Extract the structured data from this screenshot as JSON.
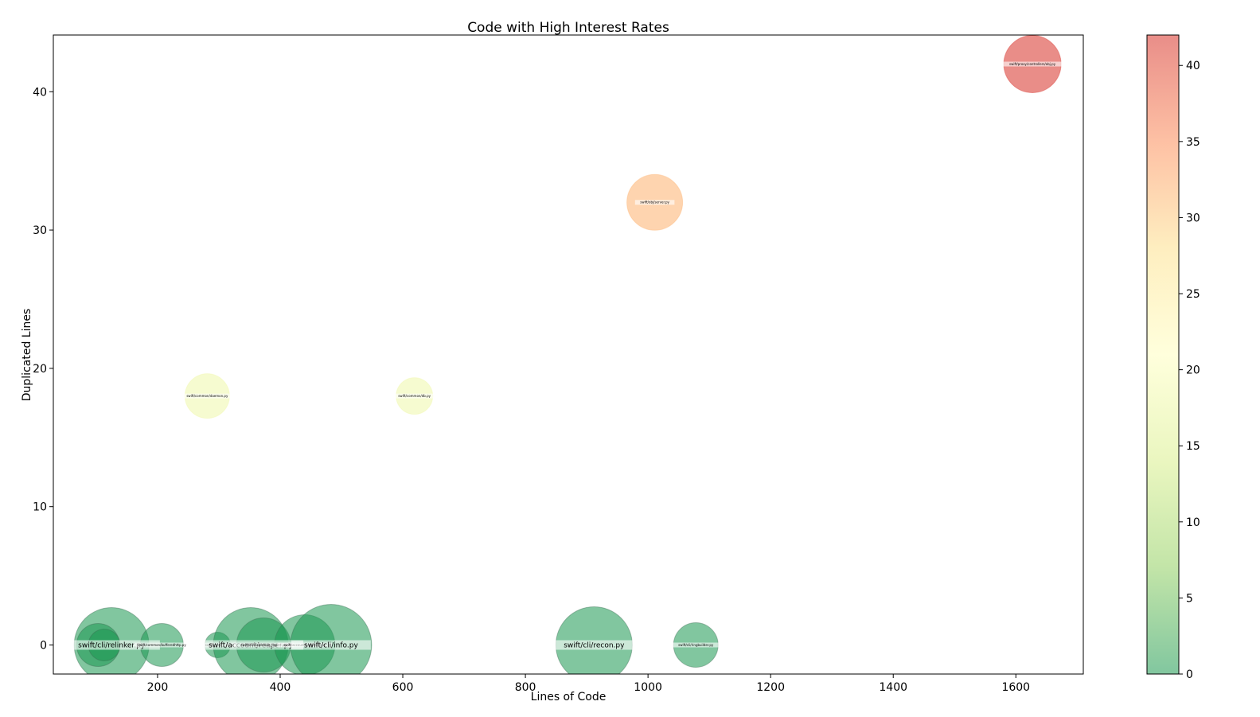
{
  "chart_data": {
    "type": "scatter",
    "title": "Code with High Interest Rates",
    "xlabel": "Lines of Code",
    "ylabel": "Duplicated Lines",
    "xlim": [
      30,
      1710
    ],
    "ylim": [
      -2.1,
      44.1
    ],
    "xticks": [
      200,
      400,
      600,
      800,
      1000,
      1200,
      1400,
      1600
    ],
    "yticks": [
      0,
      10,
      20,
      30,
      40
    ],
    "colorbar": {
      "range": [
        0,
        42
      ],
      "ticks": [
        0,
        5,
        10,
        15,
        20,
        25,
        30,
        35,
        40
      ],
      "colormap": [
        "#1a9850",
        "#91cf60",
        "#d9ef8b",
        "#ffffbf",
        "#fee08b",
        "#fc8d59",
        "#d73027"
      ],
      "alpha": 0.55,
      "position": "right"
    },
    "grid": false,
    "points": [
      {
        "x": 125,
        "y": 0,
        "color_value": 0,
        "size": 47,
        "label": "swift/cli/relinker.py",
        "label_size": "big"
      },
      {
        "x": 103,
        "y": 0,
        "color_value": 0,
        "size": 27,
        "label": "",
        "label_size": "small"
      },
      {
        "x": 113,
        "y": 0,
        "color_value": 0,
        "size": 20,
        "label": "",
        "label_size": "small"
      },
      {
        "x": 207,
        "y": 0,
        "color_value": 0,
        "size": 27,
        "label": "swift/common/bufferedhttp.py",
        "label_size": "small"
      },
      {
        "x": 298,
        "y": 0,
        "color_value": 0,
        "size": 16,
        "label": "swift/__init__.py",
        "label_size": "small"
      },
      {
        "x": 352,
        "y": 0,
        "color_value": 0,
        "size": 47,
        "label": "swift/account/reaper.py",
        "label_size": "big"
      },
      {
        "x": 373,
        "y": 0,
        "color_value": 0,
        "size": 34,
        "label": "swift/cli/dispersion_report.py",
        "label_size": "small"
      },
      {
        "x": 440,
        "y": 0,
        "color_value": 0,
        "size": 38,
        "label": "swift/account/replicator.py",
        "label_size": "small"
      },
      {
        "x": 483,
        "y": 0,
        "color_value": 0,
        "size": 51,
        "label": "swift/cli/info.py",
        "label_size": "big"
      },
      {
        "x": 912,
        "y": 0,
        "color_value": 0,
        "size": 48,
        "label": "swift/cli/recon.py",
        "label_size": "big"
      },
      {
        "x": 1078,
        "y": 0,
        "color_value": 0,
        "size": 28,
        "label": "swift/cli/ringbuilder.py",
        "label_size": "small"
      },
      {
        "x": 281,
        "y": 18,
        "color_value": 18,
        "size": 28,
        "label": "swift/common/daemon.py",
        "label_size": "small"
      },
      {
        "x": 619,
        "y": 18,
        "color_value": 18,
        "size": 23,
        "label": "swift/common/db.py",
        "label_size": "small"
      },
      {
        "x": 1011,
        "y": 32,
        "color_value": 32,
        "size": 35,
        "label": "swift/obj/server.py",
        "label_size": "small"
      },
      {
        "x": 1627,
        "y": 42,
        "color_value": 42,
        "size": 36,
        "label": "swift/proxy/controllers/obj.py",
        "label_size": "small"
      }
    ]
  }
}
